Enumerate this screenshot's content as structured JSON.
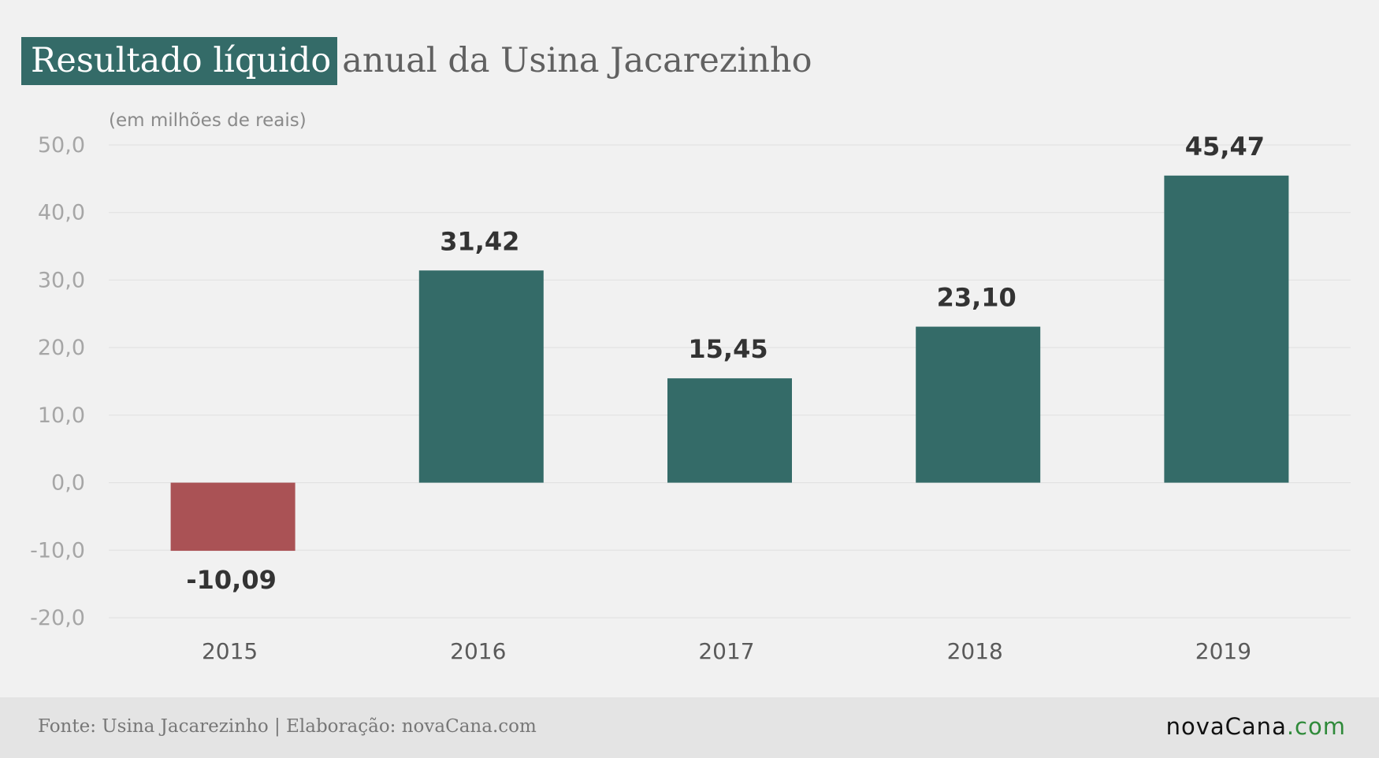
{
  "title": {
    "highlight": "Resultado líquido",
    "rest": "anual da Usina Jacarezinho"
  },
  "unit_label": "(em milhões de reais)",
  "footer": {
    "source": "Fonte: Usina Jacarezinho |  Elaboração: novaCana.com",
    "logo_main": "novaCana",
    "logo_suffix": ".com"
  },
  "colors": {
    "positive": "#346b68",
    "negative": "#aa5255",
    "title_highlight_bg": "#346b68"
  },
  "chart_data": {
    "type": "bar",
    "categories": [
      "2015",
      "2016",
      "2017",
      "2018",
      "2019"
    ],
    "values": [
      -10.09,
      31.42,
      15.45,
      23.1,
      45.47
    ],
    "data_labels": [
      "-10,09",
      "31,42",
      "15,45",
      "23,10",
      "45,47"
    ],
    "ylim": [
      -20,
      50
    ],
    "yticks": [
      50,
      40,
      30,
      20,
      10,
      0,
      -10,
      -20
    ],
    "ytick_labels": [
      "50,0",
      "40,0",
      "30,0",
      "20,0",
      "10,0",
      "0,0",
      "-10,0",
      "-20,0"
    ],
    "grid": true,
    "legend": "none"
  }
}
